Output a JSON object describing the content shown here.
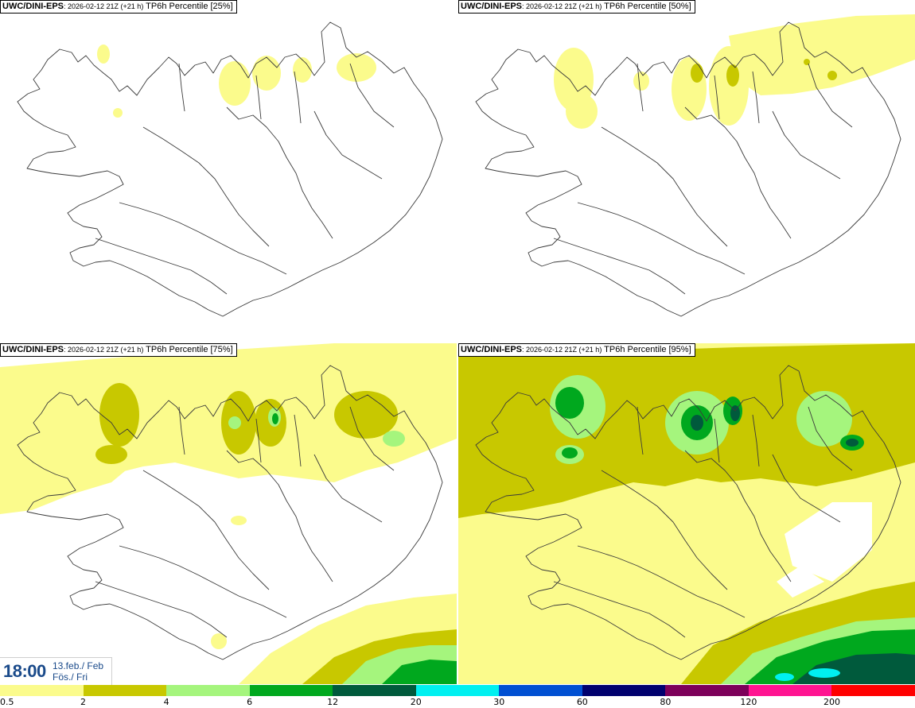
{
  "panels": [
    {
      "model": "UWC/DINI-EPS",
      "run": ": 2026-02-12 21Z (+21 h)",
      "field": " TP6h Percentile [25%]",
      "percentile": 25
    },
    {
      "model": "UWC/DINI-EPS",
      "run": ": 2026-02-12 21Z (+21 h)",
      "field": " TP6h Percentile [50%]",
      "percentile": 50
    },
    {
      "model": "UWC/DINI-EPS",
      "run": ": 2026-02-12 21Z (+21 h)",
      "field": " TP6h Percentile [75%]",
      "percentile": 75
    },
    {
      "model": "UWC/DINI-EPS",
      "run": ": 2026-02-12 21Z (+21 h)",
      "field": " TP6h Percentile [95%]",
      "percentile": 95
    }
  ],
  "valid_time": {
    "time": "18:00",
    "date": "13.feb./ Feb",
    "day": "Fös./ Fri"
  },
  "colorbar": {
    "labels": [
      "0.5",
      "2",
      "4",
      "6",
      "12",
      "20",
      "30",
      "60",
      "80",
      "120",
      "200"
    ],
    "colors": [
      "#fbfb8c",
      "#c8c800",
      "#a5f57d",
      "#00a81e",
      "#005a3c",
      "#00f0f0",
      "#0050d2",
      "#00006e",
      "#7d005a",
      "#ff1491",
      "#ff0000"
    ]
  },
  "legend_colors": {
    "l1": "#fbfb8c",
    "l2": "#c8c800",
    "l3": "#a5f57d",
    "l4": "#00a81e",
    "l5": "#005a3c",
    "l6": "#00f0f0"
  }
}
